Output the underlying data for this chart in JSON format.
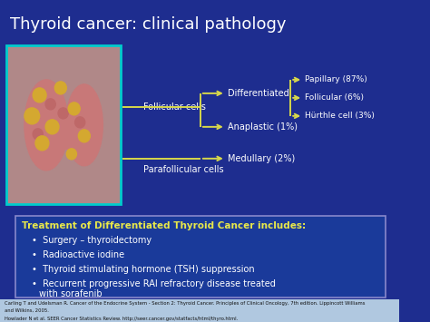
{
  "title": "Thyroid cancer: clinical pathology",
  "bg_color": "#1e2d8f",
  "title_color": "#ffffff",
  "title_fontsize": 13,
  "arrow_color": "#d8d84a",
  "text_color": "#ffffff",
  "diagram": {
    "follicular_cells_label": "Follicular cells",
    "parafollicular_cells_label": "Parafollicular cells",
    "differentiated_label": "Differentiated",
    "anaplastic_label": "Anaplastic (1%)",
    "medullary_label": "Medullary (2%)",
    "papillary_label": "Papillary (87%)",
    "follicular_label": "Follicular (6%)",
    "hurthle_label": "Hürthle cell (3%)"
  },
  "treatment_box": {
    "title": "Treatment of Differentiated Thyroid Cancer includes:",
    "bullets": [
      "Surgery – thyroidectomy",
      "Radioactive iodine",
      "Thyroid stimulating hormone (TSH) suppression",
      "Recurrent progressive RAI refractory disease treated\n    with sorafenib"
    ],
    "box_color": "#1a3a9a",
    "border_color": "#8888cc",
    "text_color": "#ffffff",
    "title_color": "#e8e84a"
  },
  "footnote1": "Carling T and Udelsman R. Cancer of the Endocrine System - Section 2: Thyroid Cancer. Principles of Clinical Oncology, 7th edition. Lippincott Williams",
  "footnote2": "and Wilkins, 2005.",
  "footnote3": "Howlader N et al. SEER Cancer Statistics Review. http://seer.cancer.gov/statfacts/html/thyro.html.",
  "footnote_color": "#111111",
  "footnote_bg": "#b0c8e0"
}
